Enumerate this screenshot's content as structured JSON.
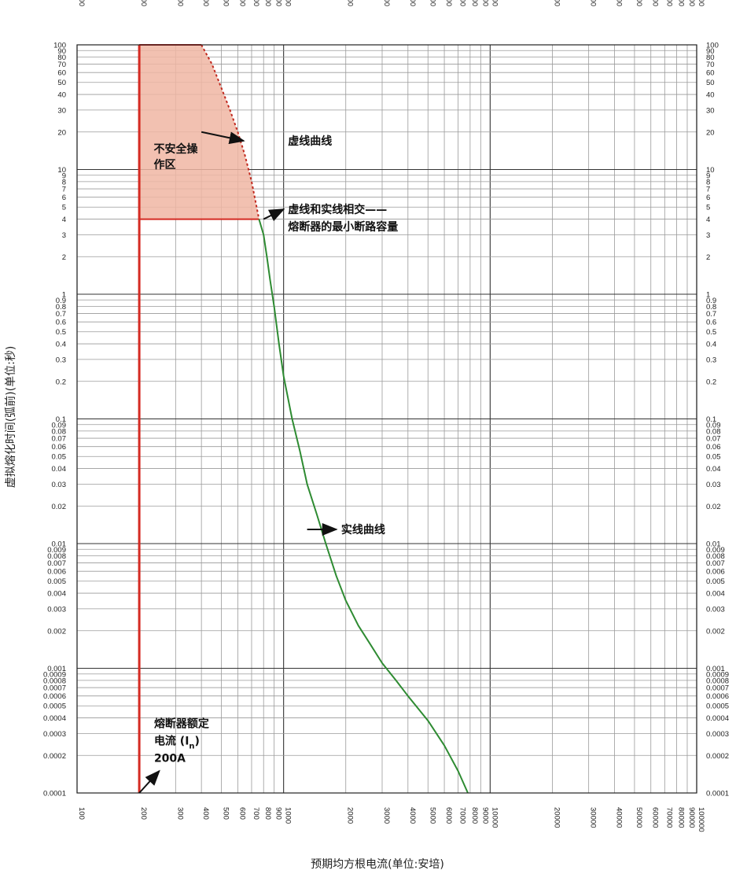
{
  "chart_data": {
    "type": "line",
    "x_scale": "log",
    "y_scale": "log",
    "xlim": [
      100,
      100000
    ],
    "ylim": [
      0.0001,
      100
    ],
    "grid": true,
    "xlabel": "预期均方根电流(单位:安培)",
    "ylabel": "虚拟熔化时间(弧前)(单位:秒)",
    "x_ticks": [
      100,
      200,
      300,
      400,
      500,
      600,
      700,
      800,
      900,
      1000,
      2000,
      3000,
      4000,
      5000,
      6000,
      7000,
      8000,
      9000,
      10000,
      20000,
      30000,
      40000,
      50000,
      60000,
      70000,
      80000,
      90000,
      100000
    ],
    "x_tick_labels": [
      "100",
      "200",
      "300",
      "400",
      "500",
      "600",
      "700",
      "800",
      "900",
      "1000",
      "2000",
      "3000",
      "4000",
      "5000",
      "6000",
      "7000",
      "8000",
      "9000",
      "10000",
      "20000",
      "30000",
      "40000",
      "50000",
      "60000",
      "70000",
      "80000",
      "90000",
      "100000"
    ],
    "y_ticks": [
      100,
      90,
      80,
      70,
      60,
      50,
      40,
      30,
      20,
      10,
      9,
      8,
      7,
      6,
      5,
      4,
      3,
      2,
      1,
      0.9,
      0.8,
      0.7,
      0.6,
      0.5,
      0.4,
      0.3,
      0.2,
      0.1,
      0.09,
      0.08,
      0.07,
      0.06,
      0.05,
      0.04,
      0.03,
      0.02,
      0.01,
      0.009,
      0.008,
      0.007,
      0.006,
      0.005,
      0.004,
      0.003,
      0.002,
      0.001,
      0.0009,
      0.0008,
      0.0007,
      0.0006,
      0.0005,
      0.0004,
      0.0003,
      0.0002,
      0.0001
    ],
    "y_tick_labels": [
      "100",
      "90",
      "80",
      "70",
      "60",
      "50",
      "40",
      "30",
      "20",
      "10",
      "9",
      "8",
      "7",
      "6",
      "5",
      "4",
      "3",
      "2",
      "1",
      "0.9",
      "0.8",
      "0.7",
      "0.6",
      "0.5",
      "0.4",
      "0.3",
      "0.2",
      "0.1",
      "0.09",
      "0.08",
      "0.07",
      "0.06",
      "0.05",
      "0.04",
      "0.03",
      "0.02",
      "0.01",
      "0.009",
      "0.008",
      "0.007",
      "0.006",
      "0.005",
      "0.004",
      "0.003",
      "0.002",
      "0.001",
      "0.0009",
      "0.0008",
      "0.0007",
      "0.0006",
      "0.0005",
      "0.0004",
      "0.0003",
      "0.0002",
      "0.0001"
    ],
    "series": [
      {
        "name": "虚线曲线",
        "style": "dashed",
        "color": "#c0281e",
        "x": [
          400,
          450,
          500,
          550,
          600,
          650,
          700,
          760
        ],
        "y": [
          100,
          70,
          45,
          30,
          20,
          13,
          8,
          4
        ]
      },
      {
        "name": "实线曲线",
        "style": "solid",
        "color": "#2e8b32",
        "x": [
          760,
          800,
          830,
          860,
          900,
          950,
          1000,
          1100,
          1200,
          1300,
          1450,
          1600,
          1800,
          2000,
          2300,
          2600,
          3000,
          3500,
          4000,
          5000,
          6000,
          7000,
          7800
        ],
        "y": [
          4,
          3,
          2,
          1.3,
          0.8,
          0.4,
          0.22,
          0.1,
          0.055,
          0.03,
          0.017,
          0.01,
          0.0055,
          0.0035,
          0.0022,
          0.0016,
          0.0011,
          0.0008,
          0.0006,
          0.00038,
          0.00024,
          0.00015,
          0.0001
        ]
      },
      {
        "name": "熔断器额定电流",
        "style": "solid",
        "color": "#d42a22",
        "x": [
          200,
          200
        ],
        "y": [
          0.0001,
          100
        ]
      }
    ],
    "regions": [
      {
        "name": "不安全操作区",
        "color": "#f0b6a3",
        "border": "#d42a22",
        "x": [
          200,
          200,
          400,
          450,
          500,
          550,
          600,
          650,
          700,
          760
        ],
        "y": [
          4,
          100,
          100,
          70,
          45,
          30,
          20,
          13,
          8,
          4
        ]
      }
    ],
    "annotations": [
      {
        "id": "unsafe",
        "lines": [
          "不安全操",
          "作区"
        ]
      },
      {
        "id": "dashed",
        "lines": [
          "虚线曲线"
        ],
        "arrow_from": [
          400,
          20
        ],
        "arrow_to": [
          640,
          17
        ]
      },
      {
        "id": "intersect",
        "lines": [
          "虚线和实线相交——",
          "熔断器的最小断路容量"
        ],
        "arrow_from": [
          800,
          4
        ],
        "arrow_to": [
          1000,
          4.8
        ]
      },
      {
        "id": "solid",
        "lines": [
          "实线曲线"
        ],
        "arrow_from": [
          1300,
          0.013
        ],
        "arrow_to": [
          1800,
          0.013
        ]
      },
      {
        "id": "rated",
        "lines": [
          "熔断器额定",
          "电流 (I",
          "200A"
        ],
        "subscript": "n",
        "suffix": ")",
        "arrow_from": [
          200,
          0.0001
        ],
        "arrow_to": [
          250,
          0.00015
        ]
      }
    ]
  }
}
